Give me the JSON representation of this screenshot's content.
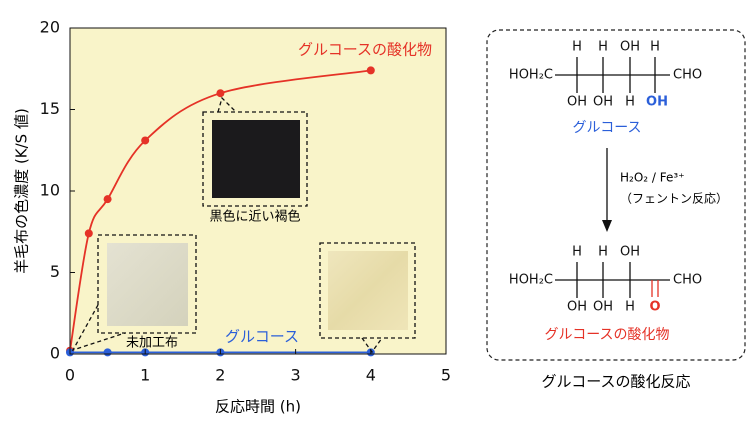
{
  "chart_data": {
    "type": "line",
    "xlabel": "反応時間 (h)",
    "ylabel": "羊毛布の色濃度 (K/S 値)",
    "xlim": [
      0,
      5
    ],
    "ylim": [
      0,
      20
    ],
    "xticks": [
      0,
      1,
      2,
      3,
      4,
      5
    ],
    "yticks": [
      0,
      5,
      10,
      15,
      20
    ],
    "series": [
      {
        "name": "グルコースの酸化物",
        "color": "#e53227",
        "x": [
          0,
          0.25,
          0.5,
          1,
          2,
          4
        ],
        "values": [
          0.2,
          7.4,
          9.5,
          13.1,
          16,
          17.4
        ]
      },
      {
        "name": "グルコース",
        "color": "#2b5fd9",
        "x": [
          0,
          0.5,
          1,
          2,
          4
        ],
        "values": [
          0.1,
          0.1,
          0.1,
          0.1,
          0.1
        ]
      }
    ],
    "annotations": [
      "未加工布",
      "黒色に近い褐色"
    ]
  },
  "diagram": {
    "title": "グルコースの酸化反応",
    "start": {
      "left": "HOH₂C",
      "right": "CHO",
      "top": [
        "H",
        "H",
        "OH",
        "H"
      ],
      "bottom": [
        "OH",
        "OH",
        "H",
        "OH"
      ],
      "name": "グルコース"
    },
    "reagent": "H₂O₂ / Fe³⁺",
    "condition": "（フェントン反応）",
    "product": {
      "left": "HOH₂C",
      "right": "CHO",
      "top": [
        "H",
        "H",
        "OH"
      ],
      "bottom": [
        "OH",
        "OH",
        "H",
        "O"
      ],
      "name": "グルコースの酸化物"
    }
  }
}
